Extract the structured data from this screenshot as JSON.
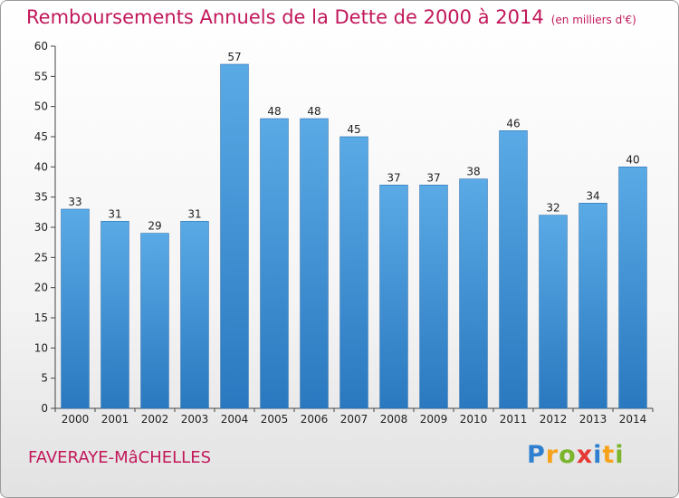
{
  "header": {
    "title": "Remboursements Annuels de la Dette de 2000 à 2014",
    "subtitle": "(en milliers d'€)"
  },
  "footer": {
    "commune": "FAVERAYE-MâCHELLES",
    "logo_letters": [
      {
        "char": "P",
        "color": "#2e7fd0"
      },
      {
        "char": "r",
        "color": "#f7a21b"
      },
      {
        "char": "o",
        "color": "#7bb52c"
      },
      {
        "char": "x",
        "color": "#e53935"
      },
      {
        "char": "i",
        "color": "#2e7fd0"
      },
      {
        "char": "t",
        "color": "#f7a21b"
      },
      {
        "char": "i",
        "color": "#7bb52c"
      }
    ]
  },
  "chart_data": {
    "type": "bar",
    "title": "Remboursements Annuels de la Dette de 2000 à 2014",
    "subtitle": "(en milliers d'€)",
    "xlabel": "",
    "ylabel": "",
    "categories": [
      "2000",
      "2001",
      "2002",
      "2003",
      "2004",
      "2005",
      "2006",
      "2007",
      "2008",
      "2009",
      "2010",
      "2011",
      "2012",
      "2013",
      "2014"
    ],
    "values": [
      33,
      31,
      29,
      31,
      57,
      48,
      48,
      45,
      37,
      37,
      38,
      46,
      32,
      34,
      40
    ],
    "ylim": [
      0,
      60
    ],
    "yticks": [
      0,
      5,
      10,
      15,
      20,
      25,
      30,
      35,
      40,
      45,
      50,
      55,
      60
    ],
    "grid": false,
    "bar_color_top": "#5aaae6",
    "bar_color_bottom": "#2a78bf"
  }
}
